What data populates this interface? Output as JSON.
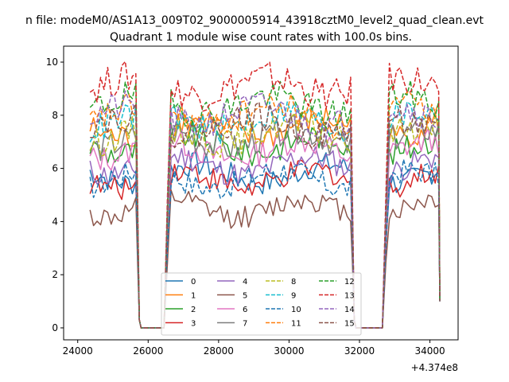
{
  "suptitle": "n file: modeM0/AS1A13_009T02_9000005914_43918cztM0_level2_quad_clean.evt",
  "chart_data": {
    "type": "line",
    "title": "Quadrant 1 module wise count rates with 100.0s bins.",
    "xlabel": "",
    "ylabel": "",
    "offset_text": "+4.374e8",
    "xlim": [
      23600,
      34800
    ],
    "ylim": [
      -0.45,
      10.6
    ],
    "x_ticks": [
      24000,
      26000,
      28000,
      30000,
      32000,
      34000
    ],
    "x_tick_labels": [
      "24000",
      "26000",
      "28000",
      "30000",
      "32000",
      "34000"
    ],
    "y_ticks": [
      0,
      2,
      4,
      6,
      8,
      10
    ],
    "y_tick_labels": [
      "0",
      "2",
      "4",
      "6",
      "8",
      "10"
    ],
    "grid": false,
    "legend_placement": "lower center",
    "segments": [
      {
        "start": 24350,
        "end": 25650
      },
      {
        "start": 26550,
        "end": 31750
      },
      {
        "start": 32750,
        "end": 34250
      }
    ],
    "gap_x": [
      [
        25750,
        26450
      ],
      [
        31850,
        32650
      ]
    ],
    "series": [
      {
        "name": "0",
        "color": "#1f77b4",
        "dash": "solid",
        "mean": 5.8
      },
      {
        "name": "1",
        "color": "#ff7f0e",
        "dash": "solid",
        "mean": 7.5
      },
      {
        "name": "2",
        "color": "#2ca02c",
        "dash": "solid",
        "mean": 6.9
      },
      {
        "name": "3",
        "color": "#d62728",
        "dash": "solid",
        "mean": 5.6
      },
      {
        "name": "4",
        "color": "#9467bd",
        "dash": "solid",
        "mean": 6.1
      },
      {
        "name": "5",
        "color": "#8c564b",
        "dash": "solid",
        "mean": 4.5
      },
      {
        "name": "6",
        "color": "#e377c2",
        "dash": "solid",
        "mean": 6.7
      },
      {
        "name": "7",
        "color": "#7f7f7f",
        "dash": "solid",
        "mean": 7.1
      },
      {
        "name": "8",
        "color": "#bcbd22",
        "dash": "dashed",
        "mean": 7.3
      },
      {
        "name": "9",
        "color": "#17becf",
        "dash": "dashed",
        "mean": 7.8
      },
      {
        "name": "10",
        "color": "#1f77b4",
        "dash": "dashed",
        "mean": 5.6
      },
      {
        "name": "11",
        "color": "#ff7f0e",
        "dash": "dashed",
        "mean": 8.0
      },
      {
        "name": "12",
        "color": "#2ca02c",
        "dash": "dashed",
        "mean": 8.4
      },
      {
        "name": "13",
        "color": "#d62728",
        "dash": "dashed",
        "mean": 9.1
      },
      {
        "name": "14",
        "color": "#9467bd",
        "dash": "dashed",
        "mean": 8.0
      },
      {
        "name": "15",
        "color": "#8c564b",
        "dash": "dashed",
        "mean": 7.6
      }
    ]
  }
}
